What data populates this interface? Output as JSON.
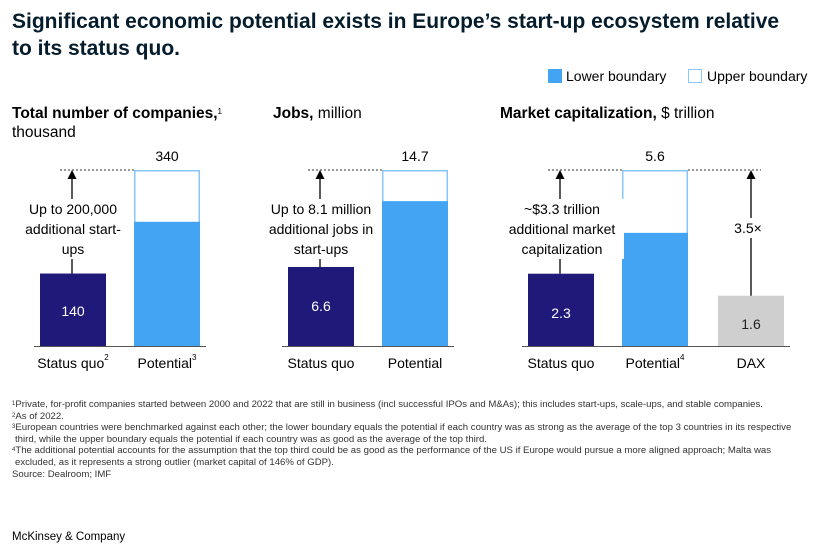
{
  "title": "Significant economic potential exists in Europe’s start-up ecosystem relative to its status quo.",
  "legend": {
    "lower": "Lower boundary",
    "upper": "Upper boundary"
  },
  "colors": {
    "status_quo": "#1f1a7a",
    "lower": "#44a4f4",
    "upper_border": "#88c6f7",
    "dax": "#cfcfcf",
    "text": "#051c2c"
  },
  "panels": {
    "companies": {
      "title_bold": "Total number of companies,",
      "title_sup": "1",
      "title_rest": "thousand",
      "annotation": "Up to 200,000 additional start-ups",
      "labels": [
        "Status quo",
        "Potential"
      ],
      "label_sups": [
        "2",
        "3"
      ]
    },
    "jobs": {
      "title_bold": "Jobs,",
      "title_rest": "million",
      "annotation": "Up to 8.1 million additional jobs in start-ups",
      "labels": [
        "Status quo",
        "Potential"
      ]
    },
    "market": {
      "title_bold": "Market capitalization,",
      "title_rest": "$ trillion",
      "annotation": "~$3.3 trillion additional market capitalization",
      "multiple": "3.5×",
      "labels": [
        "Status quo",
        "Potential",
        "DAX"
      ],
      "label_sups": [
        "",
        "4",
        ""
      ]
    }
  },
  "chart_data": [
    {
      "type": "bar",
      "title": "Total number of companies, thousand",
      "categories": [
        "Status quo",
        "Potential"
      ],
      "series": [
        {
          "name": "Status quo",
          "values": [
            140,
            null
          ]
        },
        {
          "name": "Lower boundary",
          "values": [
            null,
            240
          ]
        },
        {
          "name": "Upper boundary",
          "values": [
            null,
            340
          ]
        }
      ],
      "labels": [
        "140",
        "340"
      ],
      "ylim": [
        0,
        340
      ]
    },
    {
      "type": "bar",
      "title": "Jobs, million",
      "categories": [
        "Status quo",
        "Potential"
      ],
      "series": [
        {
          "name": "Status quo",
          "values": [
            6.6,
            null
          ]
        },
        {
          "name": "Lower boundary",
          "values": [
            null,
            12.1
          ]
        },
        {
          "name": "Upper boundary",
          "values": [
            null,
            14.7
          ]
        }
      ],
      "labels": [
        "6.6",
        "14.7"
      ],
      "ylim": [
        0,
        14.7
      ]
    },
    {
      "type": "bar",
      "title": "Market capitalization, $ trillion",
      "categories": [
        "Status quo",
        "Potential",
        "DAX"
      ],
      "series": [
        {
          "name": "Status quo",
          "values": [
            2.3,
            null,
            null
          ]
        },
        {
          "name": "Lower boundary",
          "values": [
            null,
            3.6,
            null
          ]
        },
        {
          "name": "Upper boundary",
          "values": [
            null,
            5.6,
            null
          ]
        },
        {
          "name": "DAX",
          "values": [
            null,
            null,
            1.6
          ]
        }
      ],
      "labels": [
        "2.3",
        "5.6",
        "1.6"
      ],
      "ylim": [
        0,
        5.6
      ]
    }
  ],
  "footnotes": [
    {
      "sup": "1",
      "text": "Private, for-profit companies started between 2000 and 2022 that are still in business (incl successful IPOs and M&As); this includes start-ups, scale-ups, and stable companies."
    },
    {
      "sup": "2",
      "text": "As of 2022."
    },
    {
      "sup": "3",
      "text": "European countries were benchmarked against each other; the lower boundary equals the potential if each country was as strong as the average of the top 3 countries in its respective third, while the upper boundary equals the potential if each country was as good as the average of the top third."
    },
    {
      "sup": "4",
      "text": "The additional potential accounts for the assumption that the top third could be as good as the performance of the US if Europe would pursue a more aligned approach; Malta was excluded, as it represents a strong outlier (market capital of 146% of GDP)."
    },
    {
      "sup": "",
      "text": "Source: Dealroom; IMF"
    }
  ],
  "brand": "McKinsey & Company"
}
